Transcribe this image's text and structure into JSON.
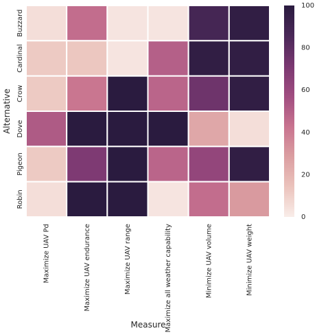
{
  "chart_data": {
    "type": "heatmap",
    "xlabel": "Measure",
    "ylabel": "Alternative",
    "x_categories": [
      "Maximize UAV Pd",
      "Maximize UAV endurance",
      "Maximize UAV range",
      "Maximize all weather capability",
      "Minimize UAV volume",
      "Minimize UAV weight"
    ],
    "y_categories": [
      "Buzzard",
      "Cardinal",
      "Crow",
      "Dove",
      "Pigeon",
      "Robin"
    ],
    "values": [
      [
        5,
        45,
        3,
        3,
        88,
        97
      ],
      [
        12,
        13,
        3,
        50,
        97,
        97
      ],
      [
        12,
        42,
        100,
        48,
        75,
        97
      ],
      [
        52,
        100,
        100,
        100,
        25,
        5
      ],
      [
        12,
        70,
        100,
        48,
        62,
        97
      ],
      [
        5,
        100,
        100,
        3,
        45,
        30
      ]
    ],
    "colorbar": {
      "range": [
        0,
        100
      ],
      "ticks": [
        "0",
        "20",
        "40",
        "60",
        "80",
        "100"
      ]
    },
    "colormap": [
      "#f9ede9",
      "#ebc3bc",
      "#db9ea1",
      "#c8738f",
      "#a04d80",
      "#7a3871",
      "#4a2858",
      "#2a1b3f"
    ],
    "grid_line_color": "#ffffff"
  }
}
